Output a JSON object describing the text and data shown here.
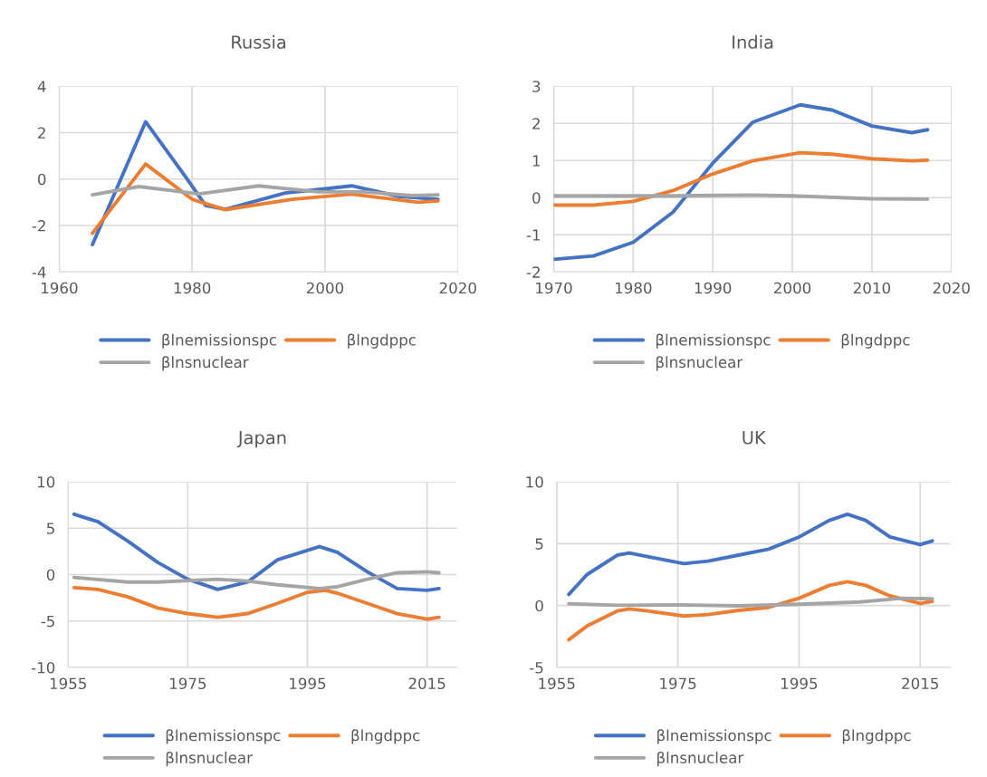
{
  "chart_data": [
    {
      "type": "line",
      "title": "Russia",
      "xlim": [
        1960,
        2020
      ],
      "xticks": [
        1960,
        1980,
        2000,
        2020
      ],
      "ylim": [
        -4,
        4
      ],
      "yticks": [
        -4,
        -2,
        0,
        2,
        4
      ],
      "grid": true,
      "legend": "bottom",
      "series": [
        {
          "name": "βlnemissionspc",
          "color": "#4472c4",
          "x": [
            1965,
            1973,
            1979,
            1982,
            1985,
            1994,
            2000,
            2004,
            2011,
            2017
          ],
          "values": [
            -2.82,
            2.47,
            0.1,
            -1.13,
            -1.3,
            -0.6,
            -0.42,
            -0.29,
            -0.74,
            -0.87
          ]
        },
        {
          "name": "βlngdppc",
          "color": "#ed7d31",
          "x": [
            1965,
            1973,
            1980,
            1985,
            1995,
            2004,
            2014,
            2017
          ],
          "values": [
            -2.33,
            0.65,
            -0.87,
            -1.32,
            -0.87,
            -0.65,
            -1.0,
            -0.94
          ]
        },
        {
          "name": "βlnsnuclear",
          "color": "#a5a5a5",
          "x": [
            1965,
            1972,
            1981,
            1990,
            1999,
            2006,
            2013,
            2017
          ],
          "values": [
            -0.68,
            -0.32,
            -0.64,
            -0.29,
            -0.55,
            -0.55,
            -0.71,
            -0.68
          ]
        }
      ]
    },
    {
      "type": "line",
      "title": "India",
      "xlim": [
        1970,
        2020
      ],
      "xticks": [
        1970,
        1980,
        1990,
        2000,
        2010,
        2020
      ],
      "ylim": [
        -2,
        3
      ],
      "yticks": [
        -2,
        -1,
        0,
        1,
        2,
        3
      ],
      "grid": true,
      "legend": "bottom",
      "series": [
        {
          "name": "βlnemissionspc",
          "color": "#4472c4",
          "x": [
            1970,
            1975,
            1980,
            1985,
            1990,
            1995,
            2001,
            2005,
            2010,
            2015,
            2017
          ],
          "values": [
            -1.66,
            -1.57,
            -1.2,
            -0.39,
            0.93,
            2.03,
            2.5,
            2.36,
            1.93,
            1.75,
            1.83
          ]
        },
        {
          "name": "βlngdppc",
          "color": "#ed7d31",
          "x": [
            1970,
            1975,
            1980,
            1985,
            1990,
            1995,
            2001,
            2005,
            2010,
            2015,
            2017
          ],
          "values": [
            -0.2,
            -0.2,
            -0.1,
            0.19,
            0.64,
            0.99,
            1.21,
            1.17,
            1.05,
            0.99,
            1.01
          ]
        },
        {
          "name": "βlnsnuclear",
          "color": "#a5a5a5",
          "x": [
            1970,
            1985,
            1995,
            2000,
            2010,
            2017
          ],
          "values": [
            0.05,
            0.05,
            0.07,
            0.05,
            -0.03,
            -0.04
          ]
        }
      ]
    },
    {
      "type": "line",
      "title": "Japan",
      "xlim": [
        1955,
        2020
      ],
      "xticks": [
        1955,
        1975,
        1995,
        2015
      ],
      "ylim": [
        -10,
        10
      ],
      "yticks": [
        -10,
        -5,
        0,
        5,
        10
      ],
      "grid": true,
      "legend": "bottom",
      "series": [
        {
          "name": "βlnemissionspc",
          "color": "#4472c4",
          "x": [
            1956,
            1960,
            1965,
            1970,
            1975,
            1980,
            1985,
            1990,
            1997,
            2000,
            2005,
            2010,
            2015,
            2017
          ],
          "values": [
            6.5,
            5.7,
            3.6,
            1.3,
            -0.5,
            -1.6,
            -0.8,
            1.6,
            3.0,
            2.4,
            0.3,
            -1.5,
            -1.7,
            -1.5
          ]
        },
        {
          "name": "βlngdppc",
          "color": "#ed7d31",
          "x": [
            1956,
            1960,
            1965,
            1970,
            1975,
            1980,
            1985,
            1990,
            1995,
            1998,
            2000,
            2005,
            2010,
            2015,
            2017
          ],
          "values": [
            -1.4,
            -1.6,
            -2.4,
            -3.6,
            -4.2,
            -4.6,
            -4.2,
            -3.1,
            -1.9,
            -1.7,
            -2.0,
            -3.1,
            -4.2,
            -4.8,
            -4.6
          ]
        },
        {
          "name": "βlnsnuclear",
          "color": "#a5a5a5",
          "x": [
            1956,
            1965,
            1970,
            1980,
            1985,
            1990,
            1997,
            2000,
            2005,
            2010,
            2015,
            2017
          ],
          "values": [
            -0.3,
            -0.8,
            -0.8,
            -0.5,
            -0.7,
            -1.1,
            -1.5,
            -1.3,
            -0.5,
            0.2,
            0.3,
            0.2
          ]
        }
      ]
    },
    {
      "type": "line",
      "title": "UK",
      "xlim": [
        1955,
        2020
      ],
      "xticks": [
        1955,
        1975,
        1995,
        2015
      ],
      "ylim": [
        -5,
        10
      ],
      "yticks": [
        -5,
        0,
        5,
        10
      ],
      "grid": true,
      "legend": "bottom",
      "series": [
        {
          "name": "βlnemissionspc",
          "color": "#4472c4",
          "x": [
            1957,
            1960,
            1965,
            1967,
            1970,
            1976,
            1980,
            1985,
            1990,
            1995,
            2000,
            2003,
            2006,
            2010,
            2015,
            2017
          ],
          "values": [
            0.9,
            2.5,
            4.07,
            4.24,
            3.95,
            3.39,
            3.59,
            4.07,
            4.56,
            5.54,
            6.88,
            7.37,
            6.88,
            5.54,
            4.93,
            5.22
          ]
        },
        {
          "name": "βlngdppc",
          "color": "#ed7d31",
          "x": [
            1957,
            1960,
            1965,
            1967,
            1970,
            1976,
            1980,
            1985,
            1990,
            1995,
            2000,
            2003,
            2006,
            2010,
            2015,
            2017
          ],
          "values": [
            -2.76,
            -1.66,
            -0.44,
            -0.27,
            -0.44,
            -0.85,
            -0.73,
            -0.39,
            -0.15,
            0.59,
            1.63,
            1.93,
            1.63,
            0.78,
            0.17,
            0.34
          ]
        },
        {
          "name": "βlnsnuclear",
          "color": "#a5a5a5",
          "x": [
            1957,
            1965,
            1975,
            1985,
            1995,
            2005,
            2012,
            2017
          ],
          "values": [
            0.15,
            0.02,
            0.05,
            -0.02,
            0.1,
            0.29,
            0.59,
            0.54
          ]
        }
      ]
    }
  ]
}
